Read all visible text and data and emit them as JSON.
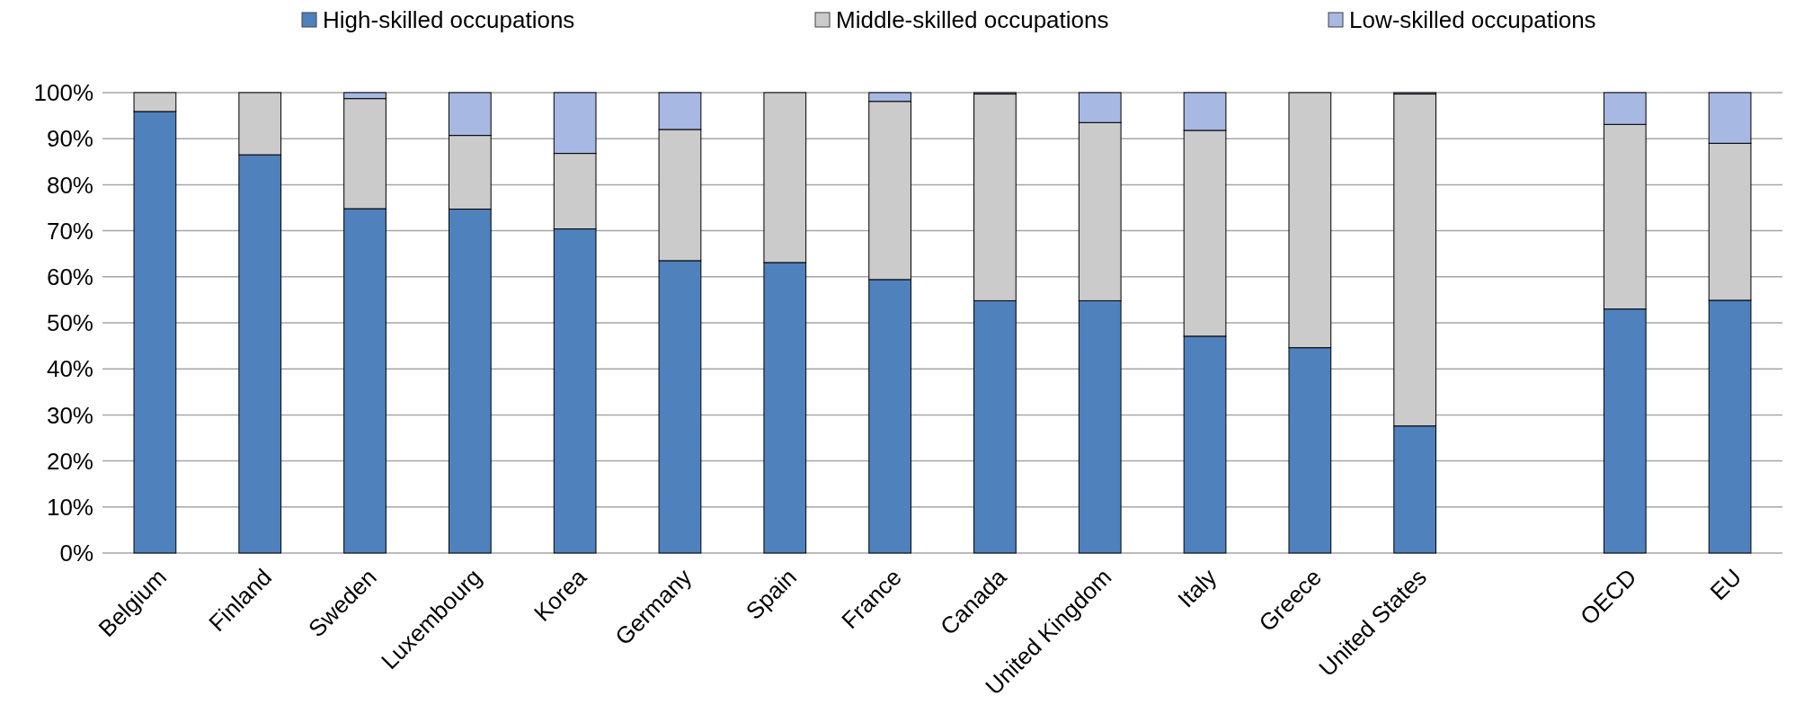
{
  "chart_data": {
    "type": "bar",
    "stacked": true,
    "categories": [
      "Belgium",
      "Finland",
      "Sweden",
      "Luxembourg",
      "Korea",
      "Germany",
      "Spain",
      "France",
      "Canada",
      "United Kingdom",
      "Italy",
      "Greece",
      "United States",
      null,
      "OECD",
      "EU"
    ],
    "series": [
      {
        "name": "High-skilled occupations",
        "color": "#4f81bd",
        "values": [
          95.9,
          86.5,
          74.8,
          74.7,
          70.4,
          63.5,
          63.1,
          59.4,
          54.8,
          54.8,
          47.1,
          44.6,
          27.6,
          null,
          53.0,
          54.9
        ]
      },
      {
        "name": "Middle-skilled occupations",
        "color": "#cbcbcb",
        "values": [
          4.1,
          13.5,
          23.9,
          16.0,
          16.4,
          28.5,
          36.9,
          38.7,
          44.9,
          38.7,
          44.7,
          55.4,
          72.1,
          null,
          40.1,
          34.1
        ]
      },
      {
        "name": "Low-skilled occupations",
        "color": "#a7b8e2",
        "values": [
          null,
          null,
          1.3,
          9.3,
          13.2,
          8.0,
          null,
          1.9,
          0.3,
          6.5,
          8.2,
          null,
          0.3,
          null,
          6.9,
          11.0
        ]
      }
    ],
    "ylim": [
      0,
      100
    ],
    "yticks": [
      {
        "value": 0,
        "label": "0%"
      },
      {
        "value": 10,
        "label": "10%"
      },
      {
        "value": 20,
        "label": "20%"
      },
      {
        "value": 30,
        "label": "30%"
      },
      {
        "value": 40,
        "label": "40%"
      },
      {
        "value": 50,
        "label": "50%"
      },
      {
        "value": 60,
        "label": "60%"
      },
      {
        "value": 70,
        "label": "70%"
      },
      {
        "value": 80,
        "label": "80%"
      },
      {
        "value": 90,
        "label": "90%"
      },
      {
        "value": 100,
        "label": "100%"
      }
    ],
    "grid": "y",
    "legend": "top"
  }
}
